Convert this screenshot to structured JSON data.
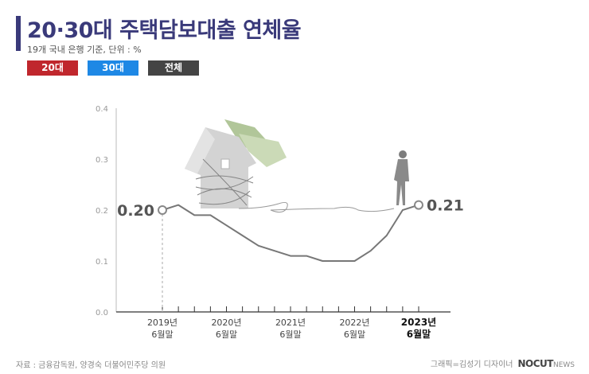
{
  "header": {
    "title": "20·30대 주택담보대출 연체율",
    "subtitle": "19개 국내 은행 기준, 단위 : %"
  },
  "legend": [
    {
      "label": "20대",
      "color": "#c0272d"
    },
    {
      "label": "30대",
      "color": "#1e88e5"
    },
    {
      "label": "전체",
      "color": "#444444"
    }
  ],
  "chart_data": {
    "type": "line",
    "ylim": [
      0,
      0.4
    ],
    "yticks": [
      "0.0",
      "0.1",
      "0.2",
      "0.3",
      "0.4"
    ],
    "xlim": [
      0,
      16
    ],
    "xticks": [
      {
        "x": 0,
        "line1": "2019년",
        "line2": "6월말"
      },
      {
        "x": 4,
        "line1": "2020년",
        "line2": "6월말"
      },
      {
        "x": 8,
        "line1": "2021년",
        "line2": "6월말"
      },
      {
        "x": 12,
        "line1": "2022년",
        "line2": "6월말"
      },
      {
        "x": 16,
        "line1": "2023년",
        "line2": "6월말"
      }
    ],
    "grid": false,
    "series": [
      {
        "color": "#777777",
        "x": [
          0,
          1,
          2,
          3,
          4,
          5,
          6,
          7,
          8,
          9,
          10,
          11,
          12,
          13,
          14,
          15,
          16
        ],
        "values": [
          0.2,
          0.21,
          0.19,
          0.19,
          0.17,
          0.15,
          0.13,
          0.12,
          0.11,
          0.11,
          0.1,
          0.1,
          0.1,
          0.12,
          0.15,
          0.2,
          0.21
        ]
      }
    ],
    "annotations": [
      {
        "x": 0,
        "value": 0.2,
        "label": "0.20"
      },
      {
        "x": 16,
        "value": 0.21,
        "label": "0.21"
      }
    ]
  },
  "footer": {
    "source": "자료 : 금융감독원, 양경숙 더불어민주당 의원",
    "credit": "그래픽=김성기 디자이너",
    "brand": "NOCUT",
    "brand_sub": "NEWS"
  }
}
